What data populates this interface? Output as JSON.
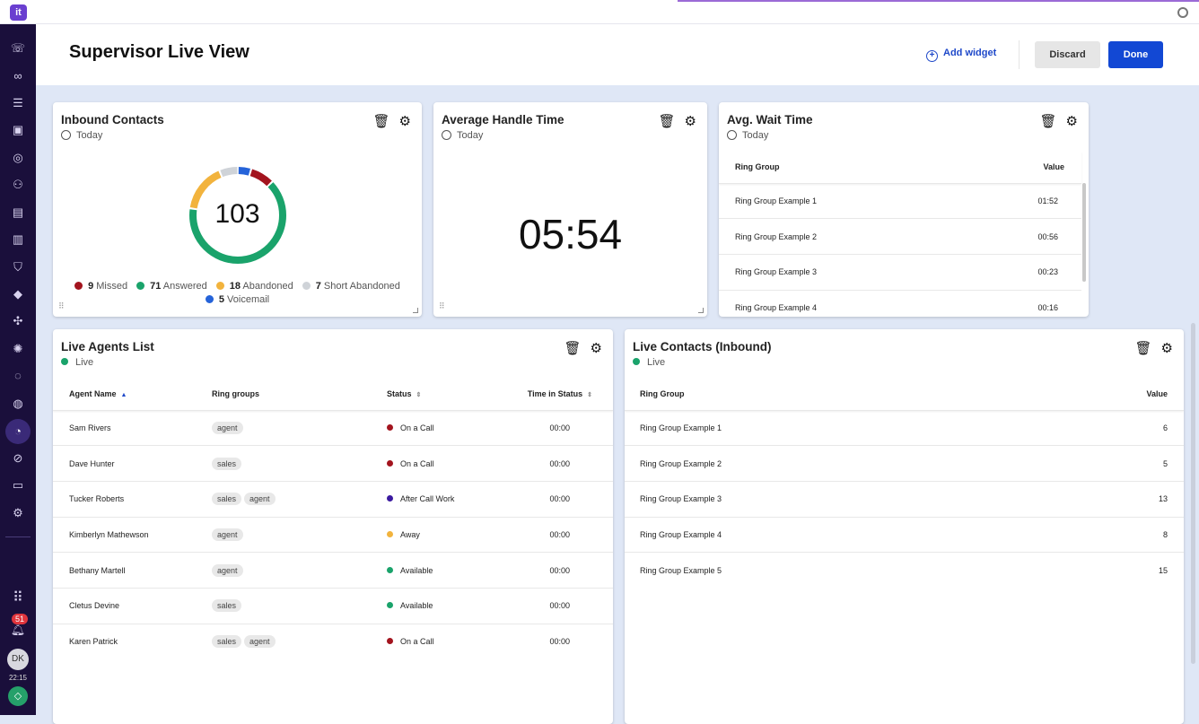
{
  "app": {
    "logo_text": "it",
    "title": "Supervisor Live View"
  },
  "header": {
    "add_widget": "Add widget",
    "discard": "Discard",
    "done": "Done"
  },
  "sidebar": {
    "notifications_count": "51",
    "avatar_initials": "DK",
    "clock": "22:15"
  },
  "inbound_contacts": {
    "title": "Inbound Contacts",
    "period": "Today",
    "total": "103",
    "legend": [
      {
        "count": "9",
        "label": "Missed",
        "color": "#a3141e",
        "value": 9
      },
      {
        "count": "71",
        "label": "Answered",
        "color": "#1aa36b",
        "value": 71
      },
      {
        "count": "18",
        "label": "Abandoned",
        "color": "#f2b33d",
        "value": 18
      },
      {
        "count": "7",
        "label": "Short Abandoned",
        "color": "#cfd3d8",
        "value": 7
      },
      {
        "count": "5",
        "label": "Voicemail",
        "color": "#2563d9",
        "value": 5
      }
    ]
  },
  "aht": {
    "title": "Average Handle Time",
    "period": "Today",
    "value": "05:54"
  },
  "wait_time": {
    "title": "Avg. Wait Time",
    "period": "Today",
    "columns": [
      "Ring Group",
      "Value"
    ],
    "rows": [
      [
        "Ring Group Example 1",
        "01:52"
      ],
      [
        "Ring Group Example 2",
        "00:56"
      ],
      [
        "Ring Group Example 3",
        "00:23"
      ],
      [
        "Ring Group Example 4",
        "00:16"
      ]
    ]
  },
  "agents": {
    "title": "Live Agents List",
    "status": "Live",
    "columns": [
      "Agent Name",
      "Ring groups",
      "Status",
      "Time in Status"
    ],
    "rows": [
      {
        "name": "Sam Rivers",
        "groups": [
          "agent"
        ],
        "status": "On a Call",
        "color": "#a3141e",
        "time": "00:00"
      },
      {
        "name": "Dave Hunter",
        "groups": [
          "sales"
        ],
        "status": "On a Call",
        "color": "#a3141e",
        "time": "00:00"
      },
      {
        "name": "Tucker Roberts",
        "groups": [
          "sales",
          "agent"
        ],
        "status": "After Call Work",
        "color": "#3b1aa0",
        "time": "00:00"
      },
      {
        "name": "Kimberlyn Mathewson",
        "groups": [
          "agent"
        ],
        "status": "Away",
        "color": "#f2b33d",
        "time": "00:00"
      },
      {
        "name": "Bethany Martell",
        "groups": [
          "agent"
        ],
        "status": "Available",
        "color": "#1aa36b",
        "time": "00:00"
      },
      {
        "name": "Cletus Devine",
        "groups": [
          "sales"
        ],
        "status": "Available",
        "color": "#1aa36b",
        "time": "00:00"
      },
      {
        "name": "Karen Patrick",
        "groups": [
          "sales",
          "agent"
        ],
        "status": "On a Call",
        "color": "#a3141e",
        "time": "00:00"
      }
    ]
  },
  "live_contacts": {
    "title": "Live Contacts (Inbound)",
    "status": "Live",
    "columns": [
      "Ring Group",
      "Value"
    ],
    "rows": [
      [
        "Ring Group Example 1",
        "6"
      ],
      [
        "Ring Group Example 2",
        "5"
      ],
      [
        "Ring Group Example 3",
        "13"
      ],
      [
        "Ring Group Example 4",
        "8"
      ],
      [
        "Ring Group Example 5",
        "15"
      ]
    ]
  }
}
